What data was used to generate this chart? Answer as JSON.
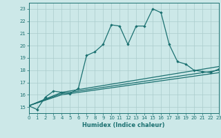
{
  "xlabel": "Humidex (Indice chaleur)",
  "bg_color": "#cce8e8",
  "grid_color": "#aacccc",
  "line_color": "#1a7070",
  "xlim": [
    0,
    23
  ],
  "ylim": [
    14.5,
    23.5
  ],
  "yticks": [
    15,
    16,
    17,
    18,
    19,
    20,
    21,
    22,
    23
  ],
  "xticks": [
    0,
    1,
    2,
    3,
    4,
    5,
    6,
    7,
    8,
    9,
    10,
    11,
    12,
    13,
    14,
    15,
    16,
    17,
    18,
    19,
    20,
    21,
    22,
    23
  ],
  "series": [
    [
      0,
      15.1
    ],
    [
      1,
      14.8
    ],
    [
      2,
      15.8
    ],
    [
      3,
      16.3
    ],
    [
      4,
      16.2
    ],
    [
      5,
      16.1
    ],
    [
      6,
      16.5
    ],
    [
      7,
      19.2
    ],
    [
      8,
      19.5
    ],
    [
      9,
      20.1
    ],
    [
      10,
      21.7
    ],
    [
      11,
      21.6
    ],
    [
      12,
      20.1
    ],
    [
      13,
      21.6
    ],
    [
      14,
      21.6
    ],
    [
      15,
      23.0
    ],
    [
      16,
      22.7
    ],
    [
      17,
      20.1
    ],
    [
      18,
      18.7
    ],
    [
      19,
      18.5
    ],
    [
      20,
      18.0
    ],
    [
      21,
      17.9
    ],
    [
      22,
      17.8
    ],
    [
      23,
      18.1
    ]
  ],
  "line2": [
    [
      0,
      15.1
    ],
    [
      4,
      16.2
    ],
    [
      23,
      18.3
    ]
  ],
  "line3": [
    [
      0,
      15.1
    ],
    [
      4,
      16.1
    ],
    [
      23,
      18.0
    ]
  ],
  "line4": [
    [
      0,
      15.1
    ],
    [
      4,
      16.0
    ],
    [
      23,
      17.8
    ]
  ]
}
